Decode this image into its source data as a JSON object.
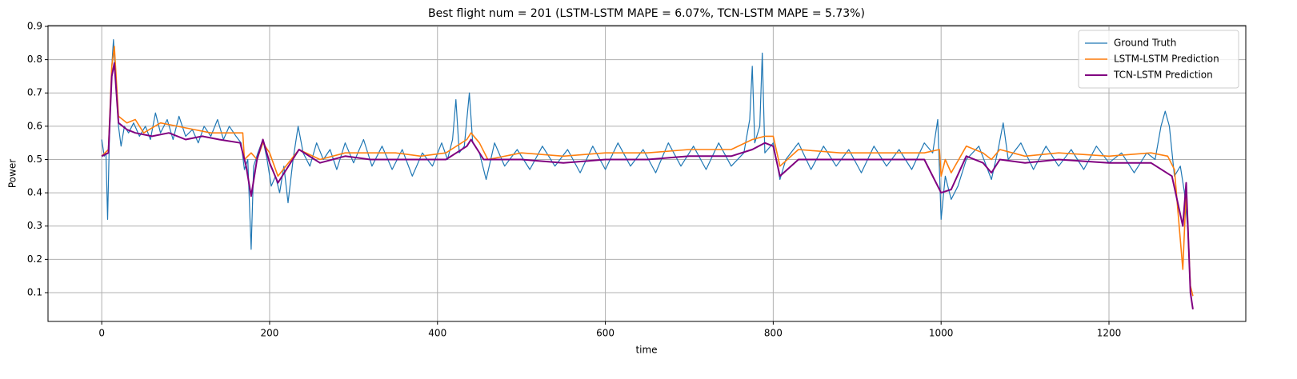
{
  "chart_data": {
    "type": "line",
    "title": "Best flight num = 201 (LSTM-LSTM MAPE = 6.07%, TCN-LSTM MAPE = 5.73%)",
    "xlabel": "time",
    "ylabel": "Power",
    "xlim": [
      -64,
      1363
    ],
    "ylim": [
      0.0135,
      0.9024
    ],
    "xticks": [
      0,
      200,
      400,
      600,
      800,
      1000,
      1200
    ],
    "yticks": [
      0.1,
      0.2,
      0.3,
      0.4,
      0.5,
      0.6,
      0.7,
      0.8,
      0.9
    ],
    "grid": true,
    "legend": "upper right",
    "series": [
      {
        "name": "Ground Truth",
        "color": "#1f77b4",
        "width": 1.2,
        "x": [
          0,
          3,
          5,
          7,
          9,
          12,
          14,
          17,
          20,
          23,
          27,
          32,
          38,
          45,
          52,
          58,
          64,
          70,
          78,
          85,
          92,
          100,
          108,
          115,
          122,
          130,
          138,
          145,
          152,
          160,
          166,
          170,
          174,
          178,
          181,
          186,
          192,
          197,
          202,
          207,
          212,
          217,
          222,
          228,
          234,
          240,
          248,
          256,
          264,
          272,
          280,
          290,
          300,
          312,
          322,
          334,
          346,
          358,
          370,
          382,
          394,
          405,
          412,
          418,
          422,
          426,
          432,
          438,
          442,
          450,
          458,
          468,
          480,
          495,
          510,
          525,
          540,
          555,
          570,
          585,
          600,
          615,
          630,
          645,
          660,
          675,
          690,
          705,
          720,
          735,
          750,
          765,
          772,
          775,
          778,
          784,
          787,
          790,
          800,
          808,
          815,
          830,
          845,
          860,
          875,
          890,
          905,
          920,
          935,
          950,
          965,
          980,
          990,
          996,
          1000,
          1005,
          1012,
          1020,
          1030,
          1045,
          1060,
          1068,
          1074,
          1080,
          1095,
          1110,
          1125,
          1140,
          1155,
          1170,
          1185,
          1200,
          1215,
          1230,
          1245,
          1255,
          1262,
          1267,
          1272,
          1278,
          1285,
          1290,
          1294,
          1297,
          1300
        ],
        "values": [
          0.56,
          0.51,
          0.52,
          0.32,
          0.55,
          0.78,
          0.86,
          0.72,
          0.6,
          0.54,
          0.6,
          0.58,
          0.61,
          0.57,
          0.6,
          0.56,
          0.64,
          0.58,
          0.62,
          0.56,
          0.63,
          0.57,
          0.59,
          0.55,
          0.6,
          0.57,
          0.62,
          0.56,
          0.6,
          0.57,
          0.55,
          0.47,
          0.5,
          0.23,
          0.48,
          0.52,
          0.56,
          0.5,
          0.42,
          0.45,
          0.4,
          0.48,
          0.37,
          0.5,
          0.6,
          0.52,
          0.48,
          0.55,
          0.5,
          0.53,
          0.47,
          0.55,
          0.49,
          0.56,
          0.48,
          0.54,
          0.47,
          0.53,
          0.45,
          0.52,
          0.48,
          0.55,
          0.5,
          0.56,
          0.68,
          0.52,
          0.54,
          0.7,
          0.55,
          0.52,
          0.44,
          0.55,
          0.48,
          0.53,
          0.47,
          0.54,
          0.48,
          0.53,
          0.46,
          0.54,
          0.47,
          0.55,
          0.48,
          0.53,
          0.46,
          0.55,
          0.48,
          0.54,
          0.47,
          0.55,
          0.48,
          0.52,
          0.62,
          0.78,
          0.55,
          0.6,
          0.82,
          0.52,
          0.55,
          0.44,
          0.5,
          0.55,
          0.47,
          0.54,
          0.48,
          0.53,
          0.46,
          0.54,
          0.48,
          0.53,
          0.47,
          0.55,
          0.52,
          0.62,
          0.32,
          0.45,
          0.38,
          0.42,
          0.5,
          0.54,
          0.44,
          0.53,
          0.61,
          0.5,
          0.55,
          0.47,
          0.54,
          0.48,
          0.53,
          0.47,
          0.54,
          0.49,
          0.52,
          0.46,
          0.52,
          0.5,
          0.6,
          0.645,
          0.6,
          0.45,
          0.48,
          0.4,
          0.29,
          0.12,
          0.09
        ]
      },
      {
        "name": "LSTM-LSTM Prediction",
        "color": "#ff7f0e",
        "width": 1.6,
        "x": [
          0,
          8,
          12,
          15,
          20,
          30,
          40,
          50,
          70,
          90,
          110,
          130,
          150,
          168,
          170,
          178,
          185,
          192,
          200,
          210,
          235,
          260,
          290,
          320,
          350,
          380,
          410,
          435,
          440,
          450,
          460,
          500,
          550,
          600,
          650,
          700,
          750,
          775,
          790,
          800,
          808,
          830,
          880,
          930,
          980,
          998,
          1000,
          1005,
          1012,
          1030,
          1050,
          1060,
          1070,
          1100,
          1140,
          1200,
          1250,
          1270,
          1278,
          1288,
          1292,
          1297,
          1300
        ],
        "values": [
          0.51,
          0.53,
          0.78,
          0.84,
          0.63,
          0.61,
          0.62,
          0.58,
          0.61,
          0.6,
          0.59,
          0.58,
          0.58,
          0.58,
          0.5,
          0.52,
          0.5,
          0.55,
          0.52,
          0.45,
          0.53,
          0.5,
          0.52,
          0.52,
          0.52,
          0.51,
          0.52,
          0.56,
          0.58,
          0.55,
          0.5,
          0.52,
          0.51,
          0.52,
          0.52,
          0.53,
          0.53,
          0.56,
          0.57,
          0.57,
          0.48,
          0.53,
          0.52,
          0.52,
          0.52,
          0.53,
          0.45,
          0.5,
          0.46,
          0.54,
          0.52,
          0.5,
          0.53,
          0.51,
          0.52,
          0.51,
          0.52,
          0.51,
          0.47,
          0.17,
          0.41,
          0.12,
          0.09
        ]
      },
      {
        "name": "TCN-LSTM Prediction",
        "color": "#800080",
        "width": 2,
        "x": [
          0,
          8,
          12,
          15,
          20,
          30,
          40,
          60,
          80,
          100,
          120,
          140,
          165,
          172,
          178,
          185,
          192,
          200,
          210,
          235,
          260,
          290,
          320,
          350,
          380,
          410,
          435,
          440,
          455,
          500,
          550,
          600,
          650,
          700,
          750,
          775,
          790,
          800,
          808,
          830,
          880,
          930,
          980,
          1000,
          1012,
          1030,
          1050,
          1060,
          1070,
          1100,
          1140,
          1200,
          1250,
          1275,
          1288,
          1292,
          1297,
          1300
        ],
        "values": [
          0.51,
          0.52,
          0.75,
          0.79,
          0.61,
          0.59,
          0.58,
          0.57,
          0.58,
          0.56,
          0.57,
          0.56,
          0.55,
          0.48,
          0.39,
          0.5,
          0.56,
          0.49,
          0.43,
          0.53,
          0.49,
          0.51,
          0.5,
          0.5,
          0.5,
          0.5,
          0.54,
          0.56,
          0.5,
          0.5,
          0.49,
          0.5,
          0.5,
          0.51,
          0.51,
          0.53,
          0.55,
          0.54,
          0.45,
          0.5,
          0.5,
          0.5,
          0.5,
          0.4,
          0.41,
          0.51,
          0.49,
          0.46,
          0.5,
          0.49,
          0.5,
          0.49,
          0.49,
          0.45,
          0.3,
          0.43,
          0.1,
          0.05
        ]
      }
    ]
  }
}
